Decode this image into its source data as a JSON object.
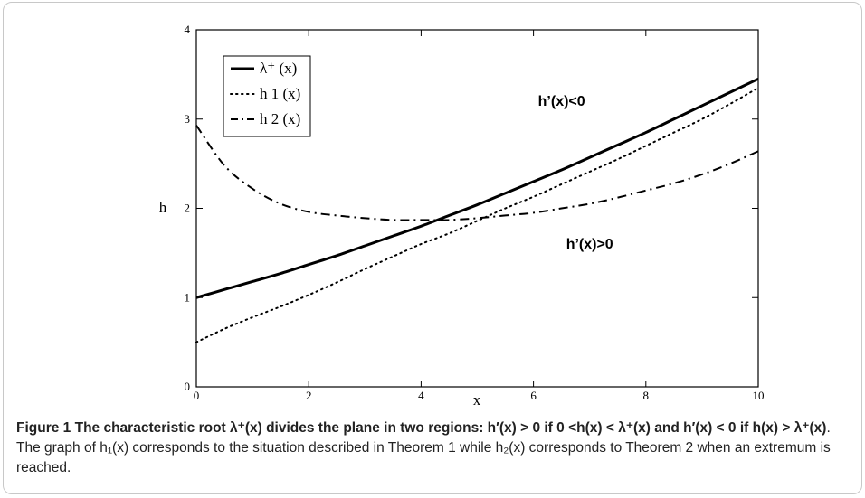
{
  "chart_data": {
    "type": "line",
    "xlabel": "x",
    "ylabel": "h",
    "xlim": [
      0,
      10
    ],
    "ylim": [
      0,
      4
    ],
    "x_ticks": [
      "0",
      "2",
      "4",
      "6",
      "8",
      "10"
    ],
    "y_ticks": [
      "0",
      "1",
      "2",
      "3",
      "4"
    ],
    "x": [
      0,
      0.5,
      1,
      1.5,
      2,
      2.5,
      3,
      3.5,
      4,
      4.5,
      5,
      5.5,
      6,
      6.5,
      7,
      7.5,
      8,
      8.5,
      9,
      9.5,
      10
    ],
    "series": [
      {
        "name": "λ⁺ (x)",
        "style": "solid",
        "color": "#000000",
        "values": [
          1.0,
          1.09,
          1.18,
          1.27,
          1.37,
          1.47,
          1.58,
          1.69,
          1.8,
          1.92,
          2.04,
          2.17,
          2.3,
          2.43,
          2.57,
          2.71,
          2.85,
          3.0,
          3.15,
          3.3,
          3.45
        ]
      },
      {
        "name": "h 1 (x)",
        "style": "dotted",
        "color": "#000000",
        "values": [
          0.5,
          0.65,
          0.78,
          0.9,
          1.03,
          1.17,
          1.32,
          1.46,
          1.6,
          1.72,
          1.86,
          2.0,
          2.13,
          2.27,
          2.41,
          2.55,
          2.7,
          2.85,
          3.0,
          3.17,
          3.35
        ]
      },
      {
        "name": "h 2 (x)",
        "style": "dashdot",
        "color": "#000000",
        "values": [
          2.93,
          2.48,
          2.22,
          2.05,
          1.96,
          1.92,
          1.89,
          1.87,
          1.87,
          1.87,
          1.89,
          1.92,
          1.95,
          2.0,
          2.05,
          2.12,
          2.2,
          2.28,
          2.38,
          2.5,
          2.64
        ]
      }
    ],
    "legend_position": "top-left",
    "annotations": [
      {
        "text": "h’(x)<0",
        "x": 6.5,
        "y": 3.2
      },
      {
        "text": "h’(x)>0",
        "x": 7.0,
        "y": 1.6
      }
    ]
  },
  "caption": {
    "label": "Figure 1",
    "bold_text": " The characteristic root λ⁺(x) divides the plane in two regions: h′(x) > 0 if 0 <h(x) < λ⁺(x) and h′(x) < 0 if h(x) > λ⁺(x)",
    "normal_text": ". The graph of h₁(x) corresponds to the situation described in Theorem 1 while h₂(x) corresponds to Theorem 2 when an extremum is reached."
  }
}
